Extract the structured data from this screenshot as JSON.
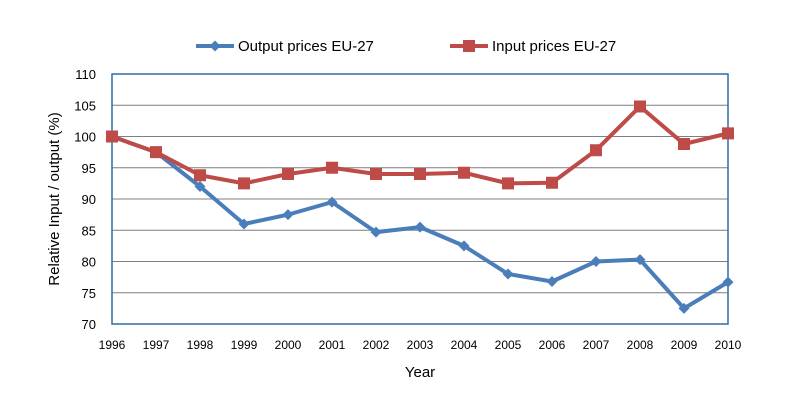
{
  "chart_data": {
    "type": "line",
    "title": "",
    "xlabel": "Year",
    "ylabel": "Relative Input / output (%)",
    "ylim": [
      70,
      110
    ],
    "yticks": [
      70,
      75,
      80,
      85,
      90,
      95,
      100,
      105,
      110
    ],
    "grid": true,
    "legend_position": "top-center",
    "categories": [
      "1996",
      "1997",
      "1998",
      "1999",
      "2000",
      "2001",
      "2002",
      "2003",
      "2004",
      "2005",
      "2006",
      "2007",
      "2008",
      "2009",
      "2010"
    ],
    "series": [
      {
        "name": "Output prices EU-27",
        "color": "#4a7ebb",
        "marker": "diamond",
        "values": [
          100,
          97.5,
          92,
          86,
          87.5,
          89.5,
          84.7,
          85.5,
          82.5,
          78,
          76.8,
          80,
          80.3,
          72.5,
          76.7
        ]
      },
      {
        "name": "Input prices EU-27",
        "color": "#be4b48",
        "marker": "square",
        "values": [
          100,
          97.5,
          93.8,
          92.5,
          94,
          95,
          94,
          94,
          94.2,
          92.5,
          92.6,
          97.8,
          104.8,
          98.8,
          100.5
        ]
      }
    ]
  },
  "colors": {
    "plot_border": "#2e6da4",
    "grid": "#7f7f7f"
  }
}
